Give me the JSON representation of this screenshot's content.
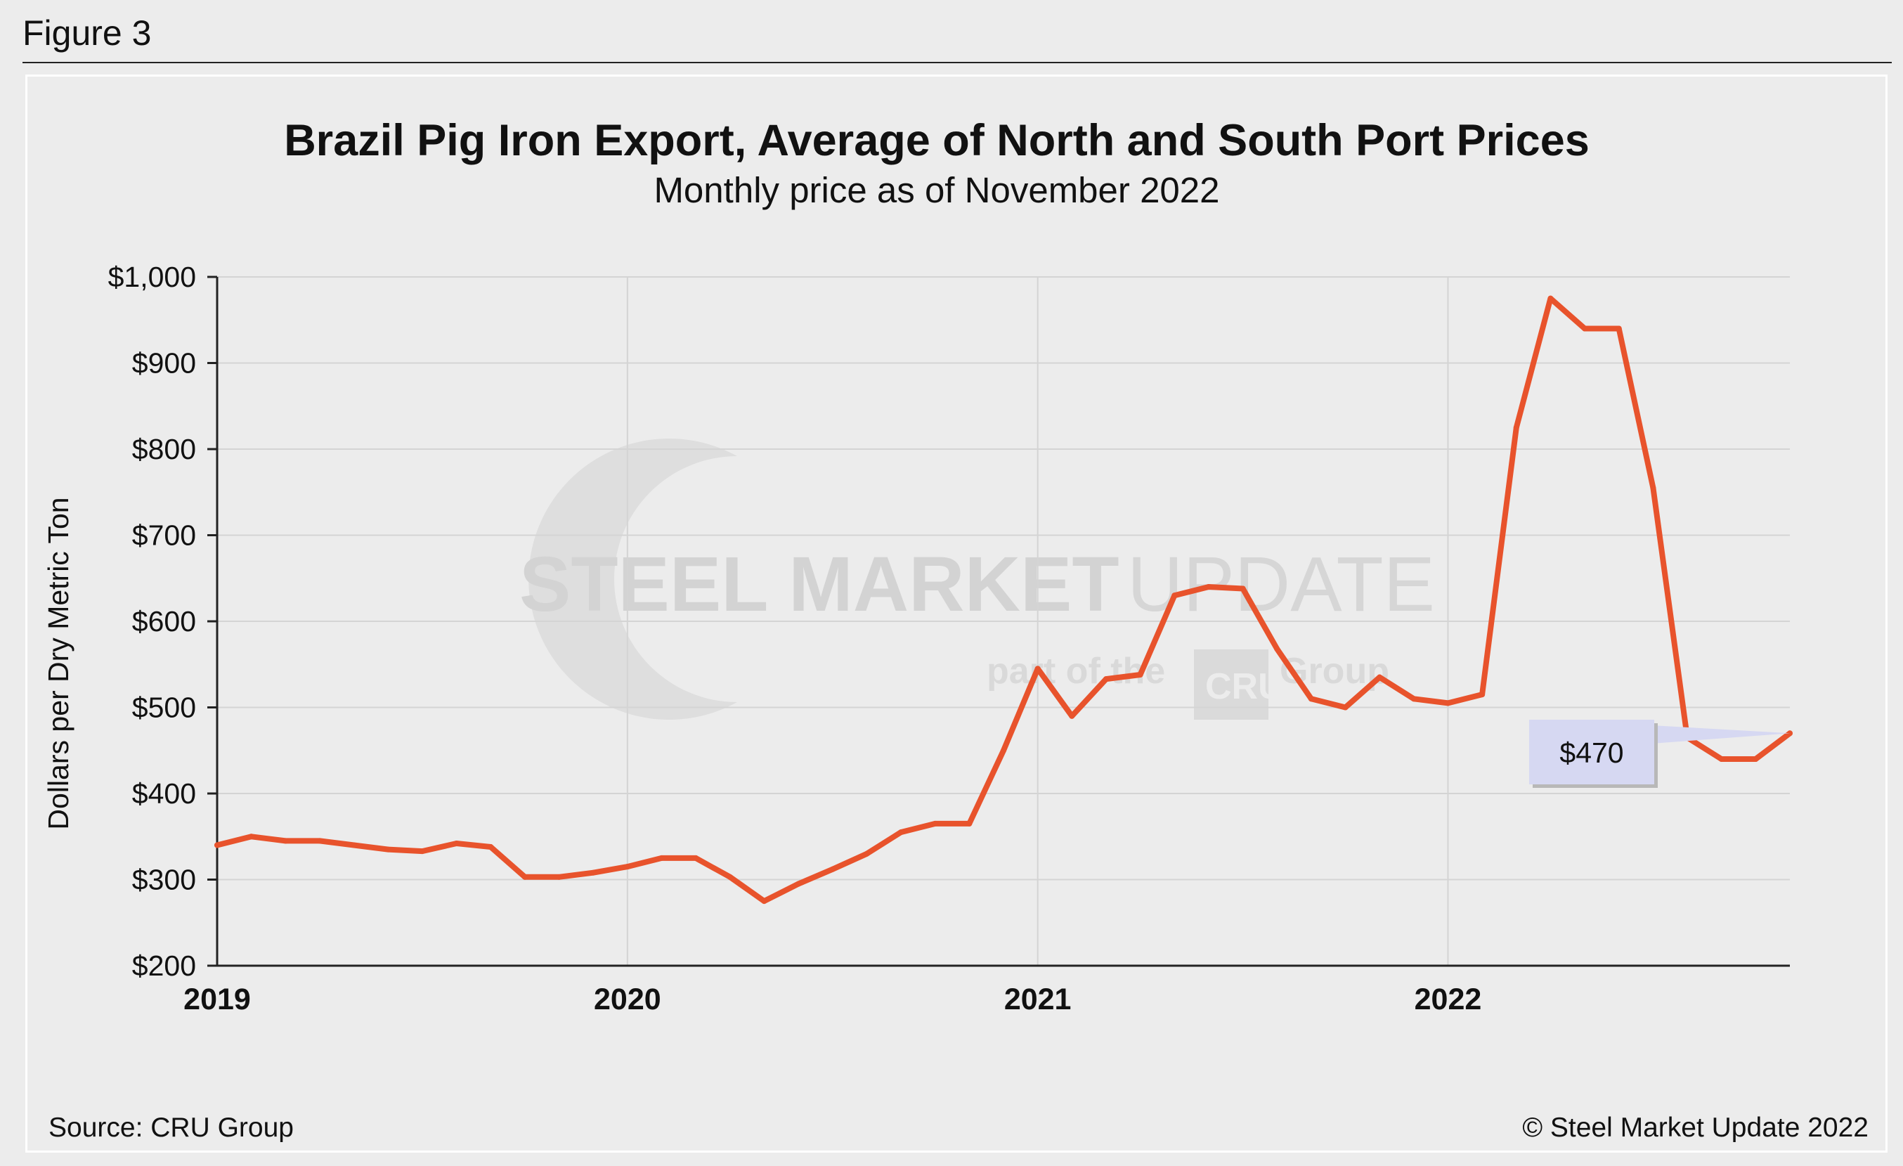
{
  "figure_label": "Figure 3",
  "watermark": {
    "brand_bold": "STEEL MARKET",
    "brand_light": "UPDATE",
    "tagline_pre": "part of the",
    "tagline_logo": "CRU",
    "tagline_post": "Group"
  },
  "footer": {
    "source": "Source: CRU Group",
    "copyright": "© Steel Market Update 2022"
  },
  "colors": {
    "line": "#e8532c",
    "callout_fill": "#d6d8f2",
    "grid": "#d4d4d4",
    "background": "#ececec"
  },
  "chart_data": {
    "type": "line",
    "title": "Brazil Pig Iron Export, Average of North and South Port Prices",
    "subtitle": "Monthly price as of November 2022",
    "ylabel": "Dollars per Dry Metric Ton",
    "xlabel": "",
    "ylim": [
      200,
      1000
    ],
    "yticks": [
      200,
      300,
      400,
      500,
      600,
      700,
      800,
      900,
      1000
    ],
    "ytick_labels": [
      "$200",
      "$300",
      "$400",
      "$500",
      "$600",
      "$700",
      "$800",
      "$900",
      "$1,000"
    ],
    "xtick_labels": [
      "2019",
      "2020",
      "2021",
      "2022"
    ],
    "x_start": "2019-01",
    "grid": true,
    "legend": "none",
    "x": [
      "2019-01",
      "2019-02",
      "2019-03",
      "2019-04",
      "2019-05",
      "2019-06",
      "2019-07",
      "2019-08",
      "2019-09",
      "2019-10",
      "2019-11",
      "2019-12",
      "2020-01",
      "2020-02",
      "2020-03",
      "2020-04",
      "2020-05",
      "2020-06",
      "2020-07",
      "2020-08",
      "2020-09",
      "2020-10",
      "2020-11",
      "2020-12",
      "2021-01",
      "2021-02",
      "2021-03",
      "2021-04",
      "2021-05",
      "2021-06",
      "2021-07",
      "2021-08",
      "2021-09",
      "2021-10",
      "2021-11",
      "2021-12",
      "2022-01",
      "2022-02",
      "2022-03",
      "2022-04",
      "2022-05",
      "2022-06",
      "2022-07",
      "2022-08",
      "2022-09",
      "2022-10",
      "2022-11"
    ],
    "values": [
      340,
      350,
      345,
      345,
      340,
      335,
      333,
      342,
      338,
      303,
      303,
      308,
      315,
      325,
      325,
      303,
      275,
      295,
      312,
      330,
      355,
      365,
      365,
      450,
      545,
      490,
      533,
      538,
      630,
      640,
      638,
      568,
      510,
      500,
      535,
      510,
      505,
      515,
      825,
      975,
      940,
      940,
      755,
      465,
      440,
      440,
      470
    ],
    "annotation": {
      "label": "$470",
      "value": 470,
      "x": "2022-11"
    }
  }
}
